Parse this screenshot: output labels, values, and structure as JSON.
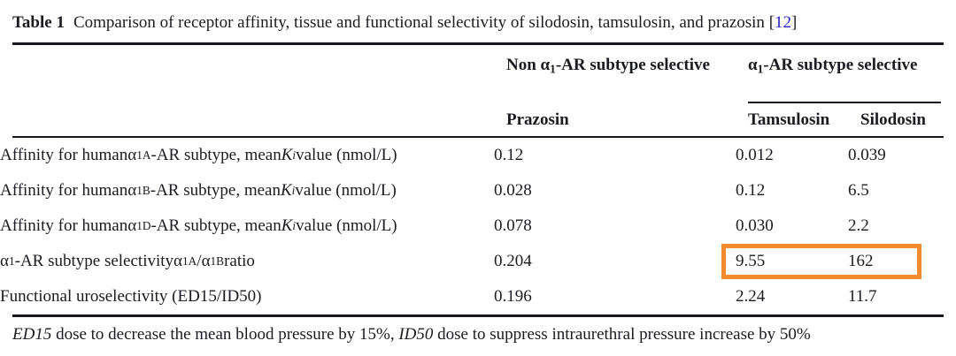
{
  "colors": {
    "text_dark": "#1b1b22",
    "link_blue": "#2525cc",
    "highlight_orange": "#f28a30"
  },
  "caption": {
    "label": "Table 1",
    "segments": [
      {
        "t": "Comparison of receptor affinity, tissue and functional selectivity of silodosin, tamsulosin, and prazosin "
      },
      {
        "t": "["
      },
      {
        "t": "12",
        "c": "#2525cc"
      },
      {
        "t": "]"
      }
    ]
  },
  "header": {
    "group_non_selective": [
      {
        "t": "Non "
      },
      {
        "t": "α"
      },
      {
        "t": "1",
        "sub": true
      },
      {
        "t": "-AR subtype selective"
      }
    ],
    "group_selective": [
      {
        "t": "α"
      },
      {
        "t": "1",
        "sub": true
      },
      {
        "t": "-AR subtype selective"
      }
    ],
    "drug1": "Prazosin",
    "drug2": "Tamsulosin",
    "drug3": "Silodosin"
  },
  "rows": [
    {
      "label": [
        {
          "t": "Affinity for human "
        },
        {
          "t": "α"
        },
        {
          "t": "1A",
          "sub": true
        },
        {
          "t": "-AR subtype, mean "
        },
        {
          "t": "K",
          "i": true
        },
        {
          "t": "i",
          "i": true,
          "sub": true
        },
        {
          "t": " value (nmol/L)"
        }
      ],
      "prazosin": "0.12",
      "tamsulosin": "0.012",
      "silodosin": "0.039"
    },
    {
      "label": [
        {
          "t": "Affinity for human "
        },
        {
          "t": "α"
        },
        {
          "t": "1B",
          "sub": true
        },
        {
          "t": "-AR subtype, mean "
        },
        {
          "t": "K",
          "i": true
        },
        {
          "t": "i",
          "i": true,
          "sub": true
        },
        {
          "t": " value (nmol/L)"
        }
      ],
      "prazosin": "0.028",
      "tamsulosin": "0.12",
      "silodosin": "6.5"
    },
    {
      "label": [
        {
          "t": "Affinity for human "
        },
        {
          "t": "α"
        },
        {
          "t": "1D",
          "sub": true
        },
        {
          "t": "-AR subtype, mean "
        },
        {
          "t": "K",
          "i": true
        },
        {
          "t": "i",
          "i": true,
          "sub": true
        },
        {
          "t": " value (nmol/L)"
        }
      ],
      "prazosin": "0.078",
      "tamsulosin": "0.030",
      "silodosin": "2.2"
    },
    {
      "label": [
        {
          "t": "α"
        },
        {
          "t": "1",
          "sub": true
        },
        {
          "t": "-AR subtype selectivity "
        },
        {
          "t": "α"
        },
        {
          "t": "1A",
          "sub": true
        },
        {
          "t": "/"
        },
        {
          "t": "α"
        },
        {
          "t": "1B",
          "sub": true
        },
        {
          "t": " ratio"
        }
      ],
      "prazosin": "0.204",
      "tamsulosin": "9.55",
      "silodosin": "162"
    },
    {
      "label": [
        {
          "t": "Functional uroselectivity (ED15/ID50)"
        }
      ],
      "prazosin": "0.196",
      "tamsulosin": "2.24",
      "silodosin": "11.7"
    }
  ],
  "highlight_box": {
    "highlighted_values": [
      "9.55",
      "162"
    ],
    "color": "#f28a30"
  },
  "footnote": {
    "segments": [
      {
        "t": "ED15",
        "i": true
      },
      {
        "t": " dose to decrease the mean blood pressure by 15%, "
      },
      {
        "t": "ID50",
        "i": true
      },
      {
        "t": "  dose to suppress intraurethral pressure increase by 50%"
      }
    ]
  }
}
